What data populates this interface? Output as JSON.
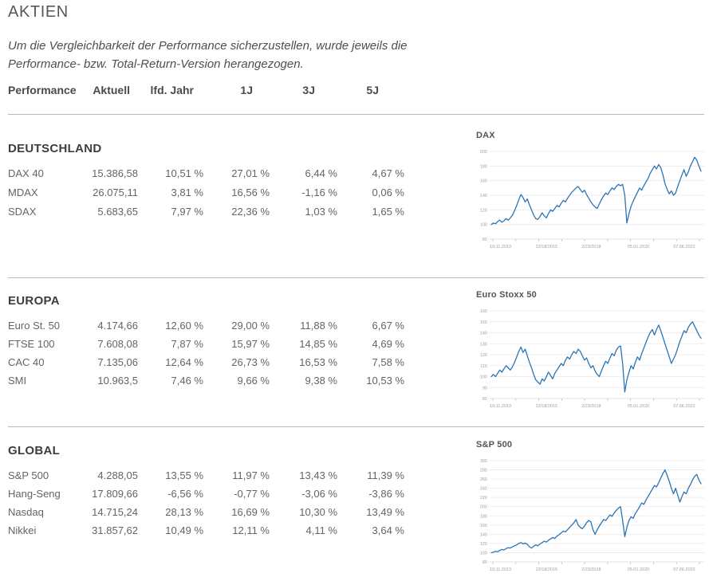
{
  "header": {
    "title": "AKTIEN",
    "intro": "Um die Vergleichbarkeit der Performance sicherzustellen, wurde jeweils die Performance- bzw. Total-Return-Version herangezogen."
  },
  "table": {
    "columns": [
      "Performance",
      "Aktuell",
      "lfd. Jahr",
      "1J",
      "3J",
      "5J"
    ],
    "sections": [
      {
        "name": "DEUTSCHLAND",
        "rows": [
          {
            "label": "DAX 40",
            "aktuell": "15.386,58",
            "lfd_jahr": "10,51 %",
            "j1": "27,01 %",
            "j3": "6,44 %",
            "j5": "4,67 %"
          },
          {
            "label": "MDAX",
            "aktuell": "26.075,11",
            "lfd_jahr": "3,81 %",
            "j1": "16,56 %",
            "j3": "-1,16 %",
            "j5": "0,06 %"
          },
          {
            "label": "SDAX",
            "aktuell": "5.683,65",
            "lfd_jahr": "7,97 %",
            "j1": "22,36 %",
            "j3": "1,03 %",
            "j5": "1,65 %"
          }
        ]
      },
      {
        "name": "EUROPA",
        "rows": [
          {
            "label": "Euro St. 50",
            "aktuell": "4.174,66",
            "lfd_jahr": "12,60 %",
            "j1": "29,00 %",
            "j3": "11,88 %",
            "j5": "6,67 %"
          },
          {
            "label": "FTSE 100",
            "aktuell": "7.608,08",
            "lfd_jahr": "7,87 %",
            "j1": "15,97 %",
            "j3": "14,85 %",
            "j5": "4,69 %"
          },
          {
            "label": "CAC 40",
            "aktuell": "7.135,06",
            "lfd_jahr": "12,64 %",
            "j1": "26,73 %",
            "j3": "16,53 %",
            "j5": "7,58 %"
          },
          {
            "label": "SMI",
            "aktuell": "10.963,5",
            "lfd_jahr": "7,46 %",
            "j1": "9,66 %",
            "j3": "9,38 %",
            "j5": "10,53 %"
          }
        ]
      },
      {
        "name": "GLOBAL",
        "rows": [
          {
            "label": "S&P 500",
            "aktuell": "4.288,05",
            "lfd_jahr": "13,55 %",
            "j1": "11,97 %",
            "j3": "13,43 %",
            "j5": "11,39 %"
          },
          {
            "label": "Hang-Seng",
            "aktuell": "17.809,66",
            "lfd_jahr": "-6,56 %",
            "j1": "-0,77 %",
            "j3": "-3,06 %",
            "j5": "-3,86 %"
          },
          {
            "label": "Nasdaq",
            "aktuell": "14.715,24",
            "lfd_jahr": "28,13 %",
            "j1": "16,69 %",
            "j3": "10,30 %",
            "j5": "13,49 %"
          },
          {
            "label": "Nikkei",
            "aktuell": "31.857,62",
            "lfd_jahr": "10,49 %",
            "j1": "12,11 %",
            "j3": "4,11 %",
            "j5": "3,64 %"
          }
        ]
      }
    ]
  },
  "chart_data": [
    {
      "type": "line",
      "title": "DAX",
      "ylim": [
        80,
        200
      ],
      "ytick_step": 20,
      "grid": true,
      "legend": "none",
      "xtick_labels": [
        "10.11.2013",
        "12/18/2015",
        "2/23/2018",
        "05.01.2020",
        "07.06.2022"
      ],
      "values": [
        100,
        102,
        101,
        104,
        106,
        103,
        105,
        108,
        106,
        109,
        113,
        119,
        126,
        134,
        141,
        137,
        131,
        135,
        127,
        120,
        113,
        108,
        107,
        111,
        116,
        112,
        109,
        115,
        120,
        118,
        122,
        126,
        124,
        129,
        133,
        131,
        136,
        140,
        144,
        147,
        150,
        152,
        148,
        144,
        147,
        141,
        136,
        131,
        127,
        124,
        122,
        128,
        134,
        139,
        143,
        141,
        146,
        150,
        148,
        152,
        155,
        153,
        155,
        140,
        102,
        115,
        125,
        132,
        138,
        144,
        150,
        147,
        153,
        158,
        163,
        170,
        175,
        180,
        176,
        182,
        178,
        168,
        156,
        148,
        142,
        146,
        140,
        143,
        152,
        160,
        168,
        175,
        166,
        172,
        180,
        186,
        192,
        188,
        180,
        173
      ]
    },
    {
      "type": "line",
      "title": "Euro Stoxx 50",
      "ylim": [
        80,
        160
      ],
      "ytick_step": 10,
      "grid": true,
      "legend": "none",
      "xtick_labels": [
        "10.11.2013",
        "12/18/2015",
        "2/23/2018",
        "05.01.2020",
        "07.06.2022"
      ],
      "values": [
        100,
        102,
        100,
        103,
        106,
        104,
        107,
        110,
        108,
        106,
        109,
        113,
        118,
        123,
        127,
        122,
        125,
        119,
        113,
        108,
        102,
        97,
        95,
        93,
        98,
        96,
        100,
        104,
        101,
        98,
        103,
        106,
        109,
        112,
        110,
        115,
        118,
        116,
        120,
        123,
        121,
        125,
        123,
        119,
        115,
        117,
        112,
        108,
        110,
        105,
        102,
        100,
        105,
        110,
        114,
        112,
        117,
        121,
        119,
        124,
        127,
        128,
        112,
        86,
        97,
        104,
        110,
        107,
        113,
        118,
        115,
        121,
        126,
        131,
        136,
        140,
        143,
        138,
        143,
        147,
        142,
        136,
        130,
        124,
        118,
        112,
        116,
        120,
        126,
        132,
        137,
        142,
        140,
        145,
        148,
        150,
        146,
        142,
        138,
        135
      ]
    },
    {
      "type": "line",
      "title": "S&P 500",
      "ylim": [
        80,
        300
      ],
      "ytick_step": 20,
      "grid": true,
      "legend": "none",
      "xtick_labels": [
        "10.11.2013",
        "12/18/2015",
        "2/23/2018",
        "05.01.2020",
        "07.06.2022"
      ],
      "values": [
        100,
        101,
        103,
        102,
        105,
        107,
        106,
        109,
        111,
        110,
        113,
        115,
        117,
        120,
        122,
        119,
        121,
        118,
        113,
        110,
        114,
        117,
        115,
        119,
        122,
        125,
        123,
        127,
        130,
        133,
        131,
        136,
        139,
        143,
        147,
        145,
        150,
        155,
        160,
        165,
        172,
        160,
        155,
        152,
        158,
        165,
        170,
        167,
        150,
        140,
        150,
        158,
        165,
        172,
        170,
        176,
        182,
        179,
        186,
        192,
        197,
        200,
        170,
        135,
        155,
        170,
        178,
        175,
        185,
        192,
        200,
        208,
        205,
        214,
        222,
        230,
        238,
        246,
        243,
        252,
        262,
        272,
        280,
        268,
        255,
        240,
        228,
        240,
        225,
        210,
        222,
        232,
        228,
        240,
        248,
        258,
        266,
        270,
        258,
        250
      ]
    }
  ],
  "colors": {
    "line_blue": "#2d74b5",
    "divider": "#b9b9b9",
    "gridline": "#e9e9e9",
    "axis_label": "#9e9e9e",
    "table_text": "#646464",
    "heading_text": "#3d3d3d"
  }
}
